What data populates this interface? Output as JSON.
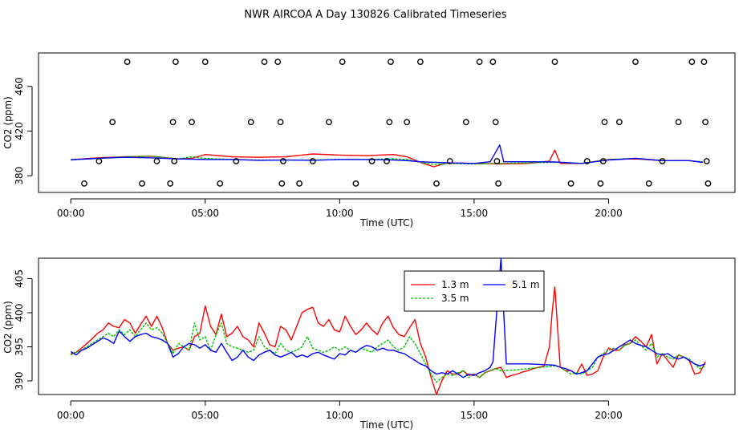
{
  "page": {
    "title": "NWR AIRCOA A  Day 130826  Calibrated Timeseries"
  },
  "chart_data": [
    {
      "type": "scatter",
      "xlabel": "Time (UTC)",
      "ylabel": "CO2 (ppm)",
      "xlim": [
        -1.2,
        24.7
      ],
      "ylim": [
        365,
        490
      ],
      "xticks": [
        0,
        5,
        10,
        15,
        20
      ],
      "xtick_labels": [
        "00:00",
        "05:00",
        "10:00",
        "15:00",
        "20:00"
      ],
      "yticks": [
        380,
        420,
        460
      ],
      "ytick_labels": [
        "380",
        "420",
        "460"
      ],
      "calibration_points": {
        "x": [
          0.5,
          1.05,
          1.55,
          2.1,
          2.65,
          3.2,
          3.7,
          3.8,
          3.85,
          3.9,
          4.5,
          5.0,
          5.55,
          6.15,
          6.7,
          7.2,
          7.7,
          7.8,
          7.85,
          7.9,
          8.5,
          9.0,
          9.6,
          10.1,
          10.6,
          11.2,
          11.75,
          11.85,
          11.9,
          12.5,
          13.0,
          13.6,
          14.1,
          14.7,
          15.2,
          15.7,
          15.8,
          15.85,
          15.9,
          18.0,
          18.6,
          19.2,
          19.7,
          19.8,
          19.85,
          20.4,
          21.0,
          21.5,
          22.0,
          22.6,
          23.1,
          23.55,
          23.6,
          23.65,
          23.7
        ],
        "y": [
          373,
          393,
          428,
          482,
          373,
          393,
          373,
          428,
          393,
          482,
          428,
          482,
          373,
          393,
          428,
          482,
          482,
          428,
          373,
          393,
          373,
          393,
          428,
          482,
          373,
          393,
          393,
          428,
          482,
          428,
          482,
          373,
          393,
          428,
          482,
          482,
          428,
          393,
          373,
          482,
          373,
          393,
          373,
          393,
          428,
          428,
          482,
          373,
          393,
          428,
          482,
          482,
          428,
          393,
          373
        ]
      },
      "series": [
        {
          "name": "1.3 m",
          "color": "#ff0000",
          "x": [
            0,
            1,
            2,
            3,
            4,
            4.5,
            5,
            6,
            7,
            8,
            9,
            10,
            11,
            12,
            12.5,
            13,
            13.5,
            14,
            15,
            16,
            17,
            17.8,
            18,
            18.2,
            19,
            20,
            21,
            22,
            23,
            23.5
          ],
          "y": [
            394.3,
            396,
            397,
            397.5,
            395,
            395.5,
            399,
            397,
            396.5,
            397,
            399.5,
            398.5,
            398,
            399,
            397,
            392,
            388,
            391.5,
            391,
            390.5,
            391,
            393,
            403,
            391,
            391,
            394.5,
            395,
            393.5,
            393.5,
            392
          ]
        },
        {
          "name": "3.5 m",
          "color": "#00c000",
          "x": [
            0,
            1,
            2,
            3,
            4,
            4.5,
            5,
            6,
            7,
            8,
            9,
            10,
            11,
            12,
            12.5,
            13,
            13.5,
            14,
            15,
            16,
            17,
            18,
            19,
            20,
            21,
            22,
            23,
            23.5
          ],
          "y": [
            394,
            395.5,
            397,
            397.5,
            395,
            397,
            395.5,
            394.5,
            394,
            394,
            394,
            394.5,
            394.5,
            395,
            394.5,
            392,
            390,
            391,
            390.5,
            391,
            391.5,
            392,
            391,
            394.5,
            395.5,
            393.5,
            393.5,
            392.5
          ]
        },
        {
          "name": "5.1 m",
          "color": "#0000ff",
          "x": [
            0,
            1,
            2,
            3,
            4,
            5,
            6,
            7,
            8,
            9,
            10,
            11,
            12,
            12.5,
            13,
            14,
            15,
            15.6,
            15.95,
            16.1,
            16.5,
            17,
            18,
            19,
            20,
            21,
            22,
            23,
            23.5
          ],
          "y": [
            394.3,
            395.5,
            396.5,
            396,
            395,
            394.5,
            394.5,
            393.8,
            394,
            393.8,
            394.5,
            394.5,
            394,
            393.5,
            392.5,
            391.5,
            391,
            392.5,
            407.5,
            392.5,
            392.5,
            392.5,
            392.3,
            391,
            394,
            395.5,
            393.5,
            393.5,
            392
          ]
        }
      ]
    },
    {
      "type": "line",
      "xlabel": "Time (UTC)",
      "ylabel": "CO2 (ppm)",
      "xlim": [
        -1.2,
        24.7
      ],
      "ylim": [
        388,
        408
      ],
      "xticks": [
        0,
        5,
        10,
        15,
        20
      ],
      "xtick_labels": [
        "00:00",
        "05:00",
        "10:00",
        "15:00",
        "20:00"
      ],
      "yticks": [
        390,
        395,
        400,
        405
      ],
      "ytick_labels": [
        "390",
        "395",
        "400",
        "405"
      ],
      "legend": {
        "position": "top-center",
        "entries": [
          "1.3 m",
          "3.5 m",
          "5.1 m"
        ]
      },
      "series": [
        {
          "name": "1.3 m",
          "color": "#ff0000",
          "x": [
            0,
            0.2,
            0.4,
            0.6,
            0.8,
            1.0,
            1.2,
            1.4,
            1.6,
            1.8,
            2.0,
            2.2,
            2.4,
            2.6,
            2.8,
            3.0,
            3.2,
            3.4,
            3.6,
            3.8,
            4.0,
            4.2,
            4.4,
            4.6,
            4.8,
            5.0,
            5.2,
            5.4,
            5.6,
            5.8,
            6.0,
            6.2,
            6.4,
            6.6,
            6.8,
            7.0,
            7.2,
            7.4,
            7.6,
            7.8,
            8.0,
            8.2,
            8.4,
            8.6,
            8.8,
            9.0,
            9.2,
            9.4,
            9.6,
            9.8,
            10.0,
            10.2,
            10.4,
            10.6,
            10.8,
            11.0,
            11.2,
            11.4,
            11.6,
            11.8,
            12.0,
            12.2,
            12.4,
            12.6,
            12.8,
            13.0,
            13.2,
            13.4,
            13.6,
            13.8,
            14.0,
            14.2,
            14.4,
            14.6,
            14.8,
            15.0,
            15.2,
            15.4,
            15.6,
            15.8,
            16.0,
            16.2,
            16.4,
            16.6,
            16.8,
            17.0,
            17.2,
            17.4,
            17.6,
            17.8,
            17.9,
            18.0,
            18.1,
            18.2,
            18.4,
            18.6,
            18.8,
            19.0,
            19.2,
            19.4,
            19.6,
            19.8,
            20.0,
            20.2,
            20.4,
            20.6,
            20.8,
            21.0,
            21.2,
            21.4,
            21.6,
            21.8,
            22.0,
            22.2,
            22.4,
            22.6,
            22.8,
            23.0,
            23.2,
            23.4,
            23.6
          ],
          "y": [
            394,
            394.2,
            394.8,
            395.5,
            396.2,
            397,
            397.5,
            398.5,
            398,
            397.8,
            399,
            398.5,
            397,
            398.3,
            399.5,
            398,
            399.5,
            397.8,
            395.5,
            394.5,
            394.8,
            395,
            394.5,
            396.5,
            397,
            401,
            398,
            396.8,
            399.8,
            396.5,
            397,
            398,
            396.5,
            396,
            395,
            398.5,
            397,
            395.3,
            395,
            398,
            397.5,
            396,
            398,
            400,
            400.5,
            400.8,
            398.5,
            398,
            399,
            397.5,
            397.2,
            399.5,
            398,
            396.8,
            397.5,
            398.5,
            397.5,
            396.8,
            398.5,
            399.5,
            397.8,
            396.8,
            396.5,
            397.8,
            399,
            395.5,
            393.5,
            390.5,
            388,
            390,
            391.5,
            391,
            391,
            391.5,
            390.8,
            391,
            390.5,
            391.2,
            391.5,
            391.8,
            392,
            390.5,
            390.8,
            391,
            391.3,
            391.5,
            391.8,
            392,
            392.2,
            395,
            400,
            403.8,
            398,
            392,
            391.5,
            391.5,
            391,
            392.5,
            390.8,
            391,
            391.5,
            393.5,
            394.8,
            394.5,
            394.5,
            395.3,
            395.5,
            396.5,
            395.8,
            395,
            396.8,
            392.5,
            394,
            393,
            392,
            393.8,
            393.5,
            393,
            391,
            391.2,
            392.8
          ],
          "label": "1.3 m"
        },
        {
          "name": "3.5 m",
          "color": "#00c000",
          "x": [
            0,
            0.2,
            0.4,
            0.6,
            0.8,
            1.0,
            1.2,
            1.4,
            1.6,
            1.8,
            2.0,
            2.2,
            2.4,
            2.6,
            2.8,
            3.0,
            3.2,
            3.4,
            3.6,
            3.8,
            4.0,
            4.2,
            4.4,
            4.6,
            4.8,
            5.0,
            5.2,
            5.4,
            5.6,
            5.8,
            6.0,
            6.2,
            6.4,
            6.6,
            6.8,
            7.0,
            7.2,
            7.4,
            7.6,
            7.8,
            8.0,
            8.2,
            8.4,
            8.6,
            8.8,
            9.0,
            9.2,
            9.4,
            9.6,
            9.8,
            10.0,
            10.2,
            10.4,
            10.6,
            10.8,
            11.0,
            11.2,
            11.4,
            11.6,
            11.8,
            12.0,
            12.2,
            12.4,
            12.6,
            12.8,
            13.0,
            13.2,
            13.4,
            13.6,
            13.8,
            14.0,
            14.2,
            14.4,
            14.6,
            14.8,
            15.0,
            15.2,
            15.4,
            15.6,
            15.8,
            16.0,
            16.5,
            17.0,
            17.5,
            18.0,
            18.2,
            18.4,
            18.6,
            18.8,
            19.0,
            19.2,
            19.4,
            19.6,
            19.8,
            20.0,
            20.2,
            20.4,
            20.6,
            20.8,
            21.0,
            21.2,
            21.4,
            21.6,
            21.8,
            22.0,
            22.2,
            22.4,
            22.6,
            22.8,
            23.0,
            23.2,
            23.4,
            23.6
          ],
          "y": [
            393.8,
            394.2,
            394.5,
            395,
            395.5,
            396,
            396.5,
            397,
            396.5,
            397.5,
            396.8,
            397.5,
            396.5,
            397.5,
            398.5,
            397.5,
            397.8,
            397,
            395.5,
            394,
            395.5,
            395,
            394.5,
            398.5,
            396,
            396.5,
            394.5,
            396.8,
            398.5,
            395.5,
            395,
            394.8,
            394.5,
            394.2,
            394.5,
            396.5,
            395,
            394.5,
            394,
            395.5,
            394.5,
            394.2,
            394.5,
            395,
            396.5,
            394.8,
            394.5,
            394.2,
            394.5,
            395,
            394.5,
            395,
            394.5,
            394.2,
            394.8,
            394.5,
            394.2,
            395,
            395.5,
            396,
            395,
            394.5,
            395,
            396.5,
            395.5,
            394,
            392.5,
            391,
            389.8,
            390.5,
            391,
            390.8,
            391.2,
            391.5,
            390.5,
            391,
            390.5,
            391.2,
            391.5,
            391.8,
            391.5,
            391.6,
            391.8,
            392,
            392.2,
            392,
            391.5,
            391,
            391.2,
            391,
            391.5,
            392,
            393.5,
            394,
            394.5,
            394.8,
            394.5,
            395.2,
            395.5,
            396,
            395.2,
            394.5,
            395.5,
            393.5,
            394,
            393.5,
            393.2,
            393.8,
            393.5,
            393.2,
            392.5,
            391.8,
            392.2
          ],
          "label": "3.5 m"
        },
        {
          "name": "5.1 m",
          "color": "#0000ff",
          "x": [
            0,
            0.2,
            0.4,
            0.6,
            0.8,
            1.0,
            1.2,
            1.4,
            1.6,
            1.8,
            2.0,
            2.2,
            2.4,
            2.6,
            2.8,
            3.0,
            3.2,
            3.4,
            3.6,
            3.8,
            4.0,
            4.2,
            4.4,
            4.6,
            4.8,
            5.0,
            5.2,
            5.4,
            5.6,
            5.8,
            6.0,
            6.2,
            6.4,
            6.6,
            6.8,
            7.0,
            7.2,
            7.4,
            7.6,
            7.8,
            8.0,
            8.2,
            8.4,
            8.6,
            8.8,
            9.0,
            9.2,
            9.4,
            9.6,
            9.8,
            10.0,
            10.2,
            10.4,
            10.6,
            10.8,
            11.0,
            11.2,
            11.4,
            11.6,
            11.8,
            12.0,
            12.2,
            12.4,
            12.6,
            12.8,
            13.0,
            13.2,
            13.4,
            13.6,
            13.8,
            14.0,
            14.2,
            14.4,
            14.6,
            14.8,
            15.0,
            15.2,
            15.4,
            15.6,
            15.7,
            15.8,
            15.9,
            16.0,
            16.1,
            16.2,
            16.5,
            17.0,
            17.5,
            18.0,
            18.2,
            18.4,
            18.6,
            18.8,
            19.0,
            19.2,
            19.4,
            19.6,
            19.8,
            20.0,
            20.2,
            20.4,
            20.6,
            20.8,
            21.0,
            21.2,
            21.4,
            21.6,
            21.8,
            22.0,
            22.2,
            22.4,
            22.6,
            22.8,
            23.0,
            23.2,
            23.4,
            23.6
          ],
          "y": [
            394.3,
            393.8,
            394.5,
            394.8,
            395.3,
            395.8,
            396.3,
            396,
            395.5,
            397.3,
            396.5,
            395.8,
            396.5,
            396.8,
            397,
            396.5,
            396.3,
            396,
            395.5,
            393.5,
            394,
            395,
            395.5,
            395.3,
            394.8,
            395.3,
            394.5,
            394.2,
            395.5,
            394.2,
            393,
            393.5,
            394.5,
            393.5,
            393,
            393.8,
            394.2,
            394.5,
            393.8,
            393.5,
            393.8,
            394.2,
            393.5,
            393.8,
            393.5,
            394,
            394.2,
            393.8,
            393.5,
            393.2,
            394,
            393.8,
            394.5,
            394.2,
            394.8,
            395.2,
            395,
            394.5,
            394.8,
            394.5,
            394.5,
            394.2,
            394,
            393.5,
            393,
            392.5,
            392.2,
            391.5,
            391,
            391.2,
            391,
            391.5,
            391,
            390.5,
            391,
            390.8,
            391.2,
            391.5,
            392,
            392.8,
            398,
            403,
            408,
            400,
            392.5,
            392.5,
            392.5,
            392.4,
            392.3,
            392,
            391.8,
            391.5,
            391,
            391.2,
            391.5,
            392.5,
            393.5,
            393.8,
            394,
            394.5,
            395,
            395.5,
            396,
            395.5,
            395.2,
            395,
            394.5,
            394,
            393.8,
            394,
            393.5,
            393.2,
            393.5,
            393,
            392.5,
            392.2,
            392.5
          ],
          "label": "5.1 m"
        }
      ]
    }
  ]
}
